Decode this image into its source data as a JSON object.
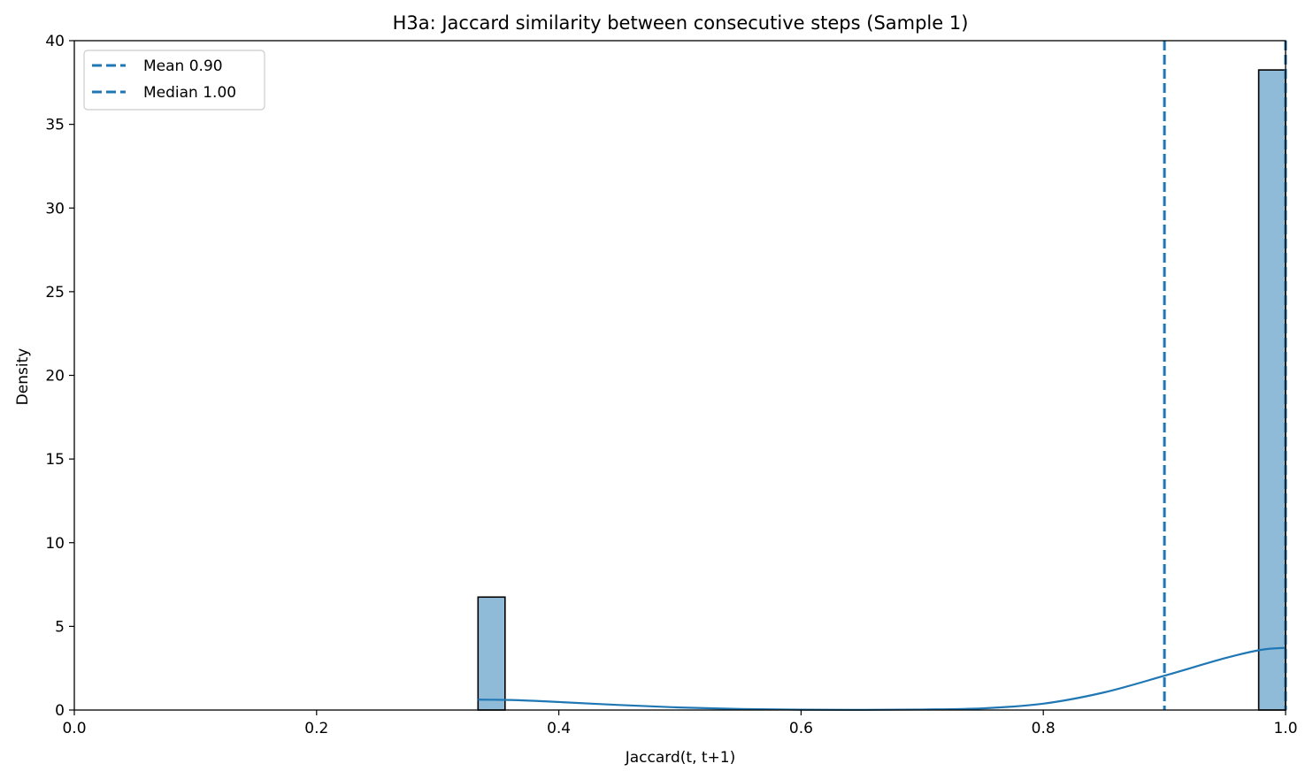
{
  "chart_data": {
    "type": "histogram",
    "title": "H3a: Jaccard similarity between consecutive steps (Sample 1)",
    "xlabel": "Jaccard(t, t+1)",
    "ylabel": "Density",
    "xlim": [
      0.0,
      1.0
    ],
    "ylim": [
      0,
      40
    ],
    "xticks": [
      0.0,
      0.2,
      0.4,
      0.6,
      0.8,
      1.0
    ],
    "xtick_labels": [
      "0.0",
      "0.2",
      "0.4",
      "0.6",
      "0.8",
      "1.0"
    ],
    "yticks": [
      0,
      5,
      10,
      15,
      20,
      25,
      30,
      35,
      40
    ],
    "ytick_labels": [
      "0",
      "5",
      "10",
      "15",
      "20",
      "25",
      "30",
      "35",
      "40"
    ],
    "bars": [
      {
        "x0": 0.3333,
        "x1": 0.3556,
        "density": 6.75
      },
      {
        "x0": 0.9778,
        "x1": 1.0,
        "density": 38.25
      }
    ],
    "kde": {
      "x": [
        0.3333,
        0.36,
        0.4,
        0.45,
        0.5,
        0.55,
        0.6,
        0.65,
        0.7,
        0.75,
        0.8,
        0.85,
        0.9,
        0.95,
        0.98,
        1.0
      ],
      "y": [
        0.62,
        0.6,
        0.48,
        0.3,
        0.15,
        0.06,
        0.02,
        0.01,
        0.03,
        0.1,
        0.38,
        1.05,
        2.05,
        3.1,
        3.6,
        3.72
      ]
    },
    "reference_lines": [
      {
        "name": "Mean 0.90",
        "x": 0.9,
        "style": "dashed"
      },
      {
        "name": "Median 1.00",
        "x": 1.0,
        "style": "dashed"
      }
    ],
    "legend": {
      "position": "upper-left",
      "entries": [
        "Mean 0.90",
        "Median 1.00"
      ]
    },
    "colors": {
      "bar_fill": "#8fbbd9",
      "bar_edge": "#000000",
      "line": "#1f77b4"
    }
  }
}
